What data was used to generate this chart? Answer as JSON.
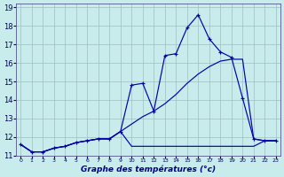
{
  "title": "Graphe des températures (°c)",
  "bg_color": "#c8ecec",
  "grid_color": "#9dbfbf",
  "line_color": "#0000aa",
  "xlim": [
    -0.4,
    23.4
  ],
  "ylim": [
    11.0,
    19.2
  ],
  "xticks": [
    0,
    1,
    2,
    3,
    4,
    5,
    6,
    7,
    8,
    9,
    10,
    11,
    12,
    13,
    14,
    15,
    16,
    17,
    18,
    19,
    20,
    21,
    22,
    23
  ],
  "yticks": [
    11,
    12,
    13,
    14,
    15,
    16,
    17,
    18,
    19
  ],
  "s1_x": [
    0,
    1,
    2,
    3,
    4,
    5,
    6,
    7,
    8,
    9,
    10,
    11,
    12,
    13,
    14,
    15,
    16,
    17,
    18,
    19,
    20,
    21,
    22,
    23
  ],
  "s1_y": [
    11.6,
    11.2,
    11.2,
    11.4,
    11.5,
    11.7,
    11.8,
    11.9,
    11.9,
    12.3,
    14.8,
    14.9,
    13.4,
    16.4,
    16.5,
    17.9,
    18.6,
    17.3,
    16.6,
    16.3,
    14.1,
    11.9,
    11.8,
    11.8
  ],
  "s2_x": [
    0,
    1,
    2,
    3,
    4,
    5,
    6,
    7,
    8,
    9,
    10,
    11,
    12,
    13,
    14,
    15,
    16,
    17,
    18,
    19,
    20,
    21,
    22,
    23
  ],
  "s2_y": [
    11.6,
    11.2,
    11.2,
    11.4,
    11.5,
    11.7,
    11.8,
    11.9,
    11.9,
    12.3,
    11.5,
    11.5,
    11.5,
    11.5,
    11.5,
    11.5,
    11.5,
    11.5,
    11.5,
    11.5,
    11.5,
    11.5,
    11.8,
    11.8
  ],
  "s3_x": [
    0,
    1,
    2,
    3,
    4,
    5,
    6,
    7,
    8,
    9,
    10,
    11,
    12,
    13,
    14,
    15,
    16,
    17,
    18,
    19,
    20,
    21,
    22,
    23
  ],
  "s3_y": [
    11.6,
    11.2,
    11.2,
    11.4,
    11.5,
    11.7,
    11.8,
    11.9,
    11.9,
    12.3,
    12.7,
    13.1,
    13.4,
    13.8,
    14.3,
    14.9,
    15.4,
    15.8,
    16.1,
    16.2,
    16.2,
    11.9,
    11.8,
    11.8
  ]
}
